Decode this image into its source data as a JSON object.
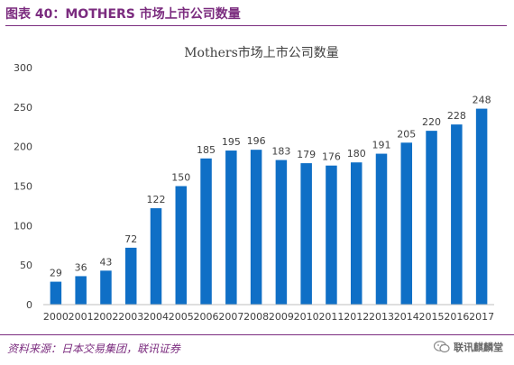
{
  "figure": {
    "title": "图表 40：MOTHERS 市场上市公司数量",
    "source": "资料来源：日本交易集团，联讯证券",
    "watermark": "联讯麒麟堂",
    "accent_color": "#7b2c7f"
  },
  "chart_data": {
    "type": "bar",
    "title": "Mothers市场上市公司数量",
    "categories": [
      "2000",
      "2001",
      "2002",
      "2003",
      "2004",
      "2005",
      "2006",
      "2007",
      "2008",
      "2009",
      "2010",
      "2011",
      "2012",
      "2013",
      "2014",
      "2015",
      "2016",
      "2017"
    ],
    "values": [
      29,
      36,
      43,
      72,
      122,
      150,
      185,
      195,
      196,
      183,
      179,
      176,
      180,
      191,
      205,
      220,
      228,
      248
    ],
    "ylim": [
      0,
      300
    ],
    "yticks": [
      0,
      50,
      100,
      150,
      200,
      250,
      300
    ],
    "grid": false,
    "legend": "none",
    "bar_color": "#0f6fc6"
  }
}
